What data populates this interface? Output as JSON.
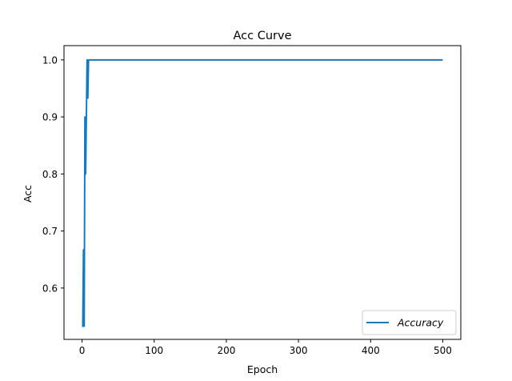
{
  "chart_data": {
    "type": "line",
    "title": "Acc Curve",
    "xlabel": "Epoch",
    "ylabel": "Acc",
    "xlim": [
      -25,
      525
    ],
    "ylim": [
      0.51,
      1.025
    ],
    "xticks": [
      0,
      100,
      200,
      300,
      400,
      500
    ],
    "yticks": [
      0.6,
      0.7,
      0.8,
      0.9,
      1.0
    ],
    "xtick_labels": [
      "0",
      "100",
      "200",
      "300",
      "400",
      "500"
    ],
    "ytick_labels": [
      "0.6",
      "0.7",
      "0.8",
      "0.9",
      "1.0"
    ],
    "legend": {
      "position": "bottom-right",
      "entries": [
        "Accuracy"
      ]
    },
    "grid": false,
    "series": [
      {
        "name": "Accuracy",
        "color": "#1f77b4",
        "x": [
          0,
          1,
          2,
          3,
          4,
          5,
          6,
          7,
          8,
          9,
          10,
          20,
          50,
          100,
          200,
          300,
          400,
          500
        ],
        "y": [
          0.533,
          0.533,
          0.667,
          0.533,
          0.9,
          0.8,
          0.9,
          1.0,
          0.933,
          1.0,
          1.0,
          1.0,
          1.0,
          1.0,
          1.0,
          1.0,
          1.0,
          1.0
        ]
      }
    ]
  }
}
